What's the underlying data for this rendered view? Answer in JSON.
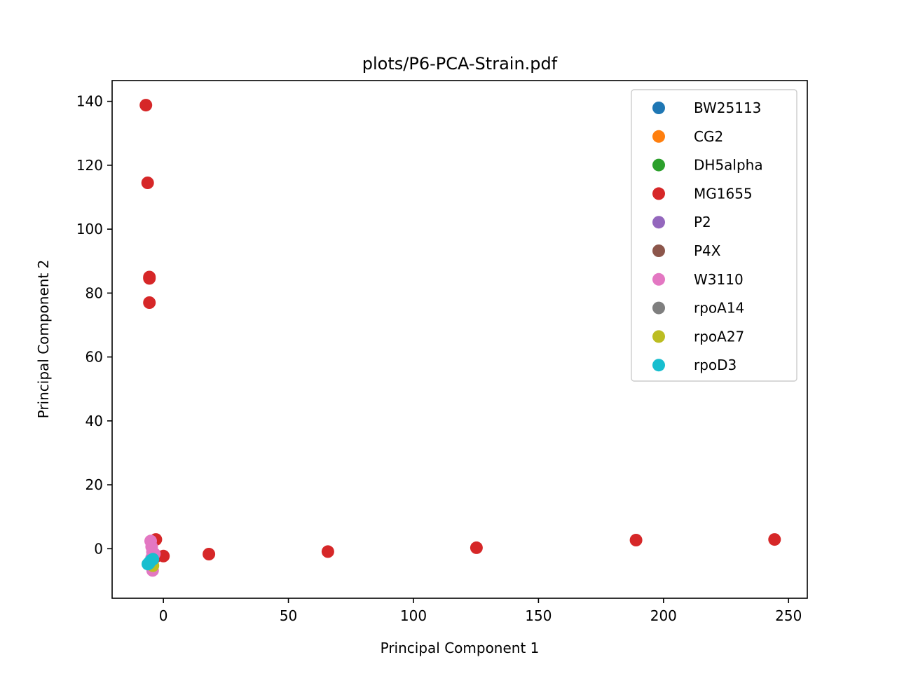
{
  "chart_data": {
    "type": "scatter",
    "title": "plots/P6-PCA-Strain.pdf",
    "xlabel": "Principal Component 1",
    "ylabel": "Principal Component 2",
    "xlim": [
      -20.5,
      257.5
    ],
    "ylim": [
      -15.5,
      146.5
    ],
    "xticks": [
      0,
      50,
      100,
      150,
      200,
      250
    ],
    "yticks": [
      0,
      20,
      40,
      60,
      80,
      100,
      120,
      140
    ],
    "grid": false,
    "legend_position": "upper right",
    "series": [
      {
        "name": "BW25113",
        "color": "#1f77b4",
        "points": [
          [
            -5.2,
            -4.1
          ],
          [
            -4.8,
            -3.6
          ]
        ]
      },
      {
        "name": "CG2",
        "color": "#ff7f0e",
        "points": [
          [
            -4.9,
            -4.6
          ],
          [
            -4.3,
            -4.0
          ]
        ]
      },
      {
        "name": "DH5alpha",
        "color": "#2ca02c",
        "points": [
          [
            -5.0,
            -4.3
          ],
          [
            -4.6,
            -3.9
          ]
        ]
      },
      {
        "name": "MG1655",
        "color": "#d62728",
        "points": [
          [
            -7.0,
            138.8
          ],
          [
            -6.3,
            114.5
          ],
          [
            -5.6,
            85.0
          ],
          [
            -5.6,
            84.6
          ],
          [
            -5.6,
            77.0
          ],
          [
            -3.0,
            2.9
          ],
          [
            -4.2,
            -2.2
          ],
          [
            -3.5,
            -1.8
          ],
          [
            -2.6,
            -2.3
          ],
          [
            0.0,
            -2.3
          ],
          [
            18.2,
            -1.7
          ],
          [
            65.8,
            -0.9
          ],
          [
            125.2,
            0.3
          ],
          [
            189.0,
            2.7
          ],
          [
            244.4,
            2.9
          ]
        ]
      },
      {
        "name": "P2",
        "color": "#9467bd",
        "points": [
          [
            -5.4,
            -4.4
          ]
        ]
      },
      {
        "name": "P4X",
        "color": "#8c564b",
        "points": [
          [
            -5.1,
            -4.5
          ],
          [
            -4.4,
            -3.3
          ]
        ]
      },
      {
        "name": "W3110",
        "color": "#e377c2",
        "points": [
          [
            -5.1,
            2.4
          ],
          [
            -4.7,
            0.6
          ],
          [
            -4.4,
            -1.0
          ],
          [
            -3.6,
            -1.6
          ],
          [
            -4.7,
            -2.8
          ],
          [
            -4.6,
            -5.5
          ],
          [
            -4.3,
            -6.8
          ]
        ]
      },
      {
        "name": "rpoA14",
        "color": "#7f7f7f",
        "points": [
          [
            -4.9,
            -4.7
          ]
        ]
      },
      {
        "name": "rpoA27",
        "color": "#bcbd22",
        "points": [
          [
            -4.2,
            -5.3
          ],
          [
            -4.6,
            -5.0
          ]
        ]
      },
      {
        "name": "rpoD3",
        "color": "#17becf",
        "points": [
          [
            -6.2,
            -4.8
          ],
          [
            -5.5,
            -4.2
          ],
          [
            -4.8,
            -3.6
          ],
          [
            -4.2,
            -3.3
          ],
          [
            -5.8,
            -4.6
          ]
        ]
      }
    ]
  }
}
